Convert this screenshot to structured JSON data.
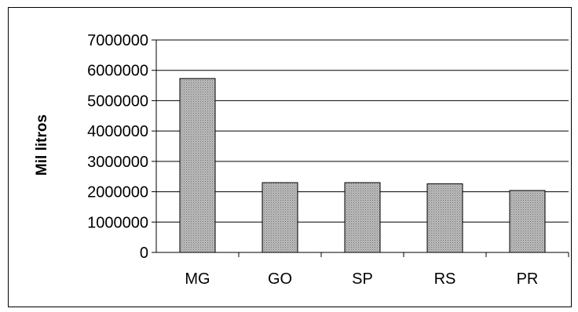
{
  "chart_data": {
    "type": "bar",
    "categories": [
      "MG",
      "GO",
      "SP",
      "RS",
      "PR"
    ],
    "values": [
      5730000,
      2300000,
      2300000,
      2260000,
      2040000
    ],
    "title": "",
    "xlabel": "",
    "ylabel": "Mil litros",
    "ylim": [
      0,
      7000000
    ],
    "yticks": [
      0,
      1000000,
      2000000,
      3000000,
      4000000,
      5000000,
      6000000,
      7000000
    ],
    "grid": "horizontal",
    "legend": "none",
    "bar_color": "#a9a9a9"
  }
}
